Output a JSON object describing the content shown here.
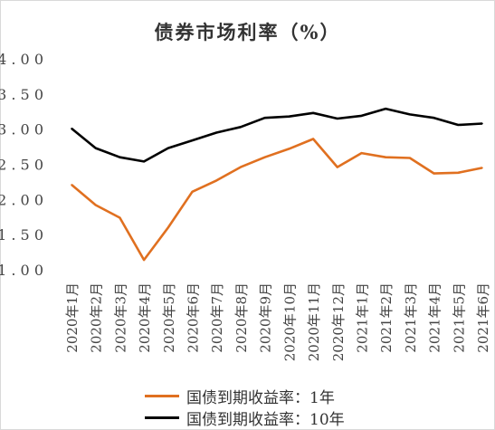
{
  "chart_data": {
    "type": "line",
    "title": "债券市场利率（%）",
    "categories": [
      "2020年1月",
      "2020年2月",
      "2020年3月",
      "2020年4月",
      "2020年5月",
      "2020年6月",
      "2020年7月",
      "2020年8月",
      "2020年9月",
      "2020年10月",
      "2020年11月",
      "2020年12月",
      "2021年1月",
      "2021年2月",
      "2021年3月",
      "2021年4月",
      "2021年5月",
      "2021年6月"
    ],
    "yticks": [
      "1.00",
      "1.50",
      "2.00",
      "2.50",
      "3.00",
      "3.50",
      "4.00"
    ],
    "ylim": [
      1.0,
      4.0
    ],
    "grid": false,
    "legend_position": "bottom",
    "series": [
      {
        "name": "国债到期收益率：1年",
        "color": "#e07020",
        "values": [
          2.21,
          1.92,
          1.74,
          1.14,
          1.6,
          2.11,
          2.27,
          2.46,
          2.6,
          2.72,
          2.86,
          2.46,
          2.66,
          2.6,
          2.59,
          2.37,
          2.38,
          2.45
        ]
      },
      {
        "name": "国债到期收益率：10年",
        "color": "#000000",
        "values": [
          3.01,
          2.73,
          2.6,
          2.54,
          2.73,
          2.84,
          2.95,
          3.03,
          3.16,
          3.18,
          3.23,
          3.15,
          3.19,
          3.29,
          3.21,
          3.16,
          3.06,
          3.08
        ]
      }
    ]
  }
}
